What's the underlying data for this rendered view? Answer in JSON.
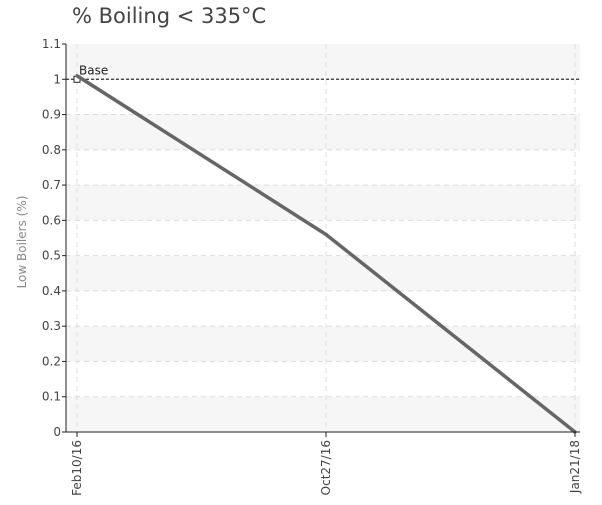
{
  "chart_data": {
    "type": "line",
    "title": "% Boiling < 335°C",
    "xlabel": "",
    "ylabel": "Low Boilers (%)",
    "ylim": [
      0,
      1.1
    ],
    "yticks": [
      0,
      0.1,
      0.2,
      0.3,
      0.4,
      0.5,
      0.6,
      0.7,
      0.8,
      0.9,
      1,
      1.1
    ],
    "categories": [
      "Feb10/16",
      "Oct27/16",
      "Jan21/18"
    ],
    "series": [
      {
        "values": [
          1.01,
          0.56,
          0.0
        ],
        "color": "#666666"
      }
    ],
    "reference_line": {
      "label": "Base",
      "value": 1.0
    },
    "grid": true,
    "legend": "none"
  }
}
